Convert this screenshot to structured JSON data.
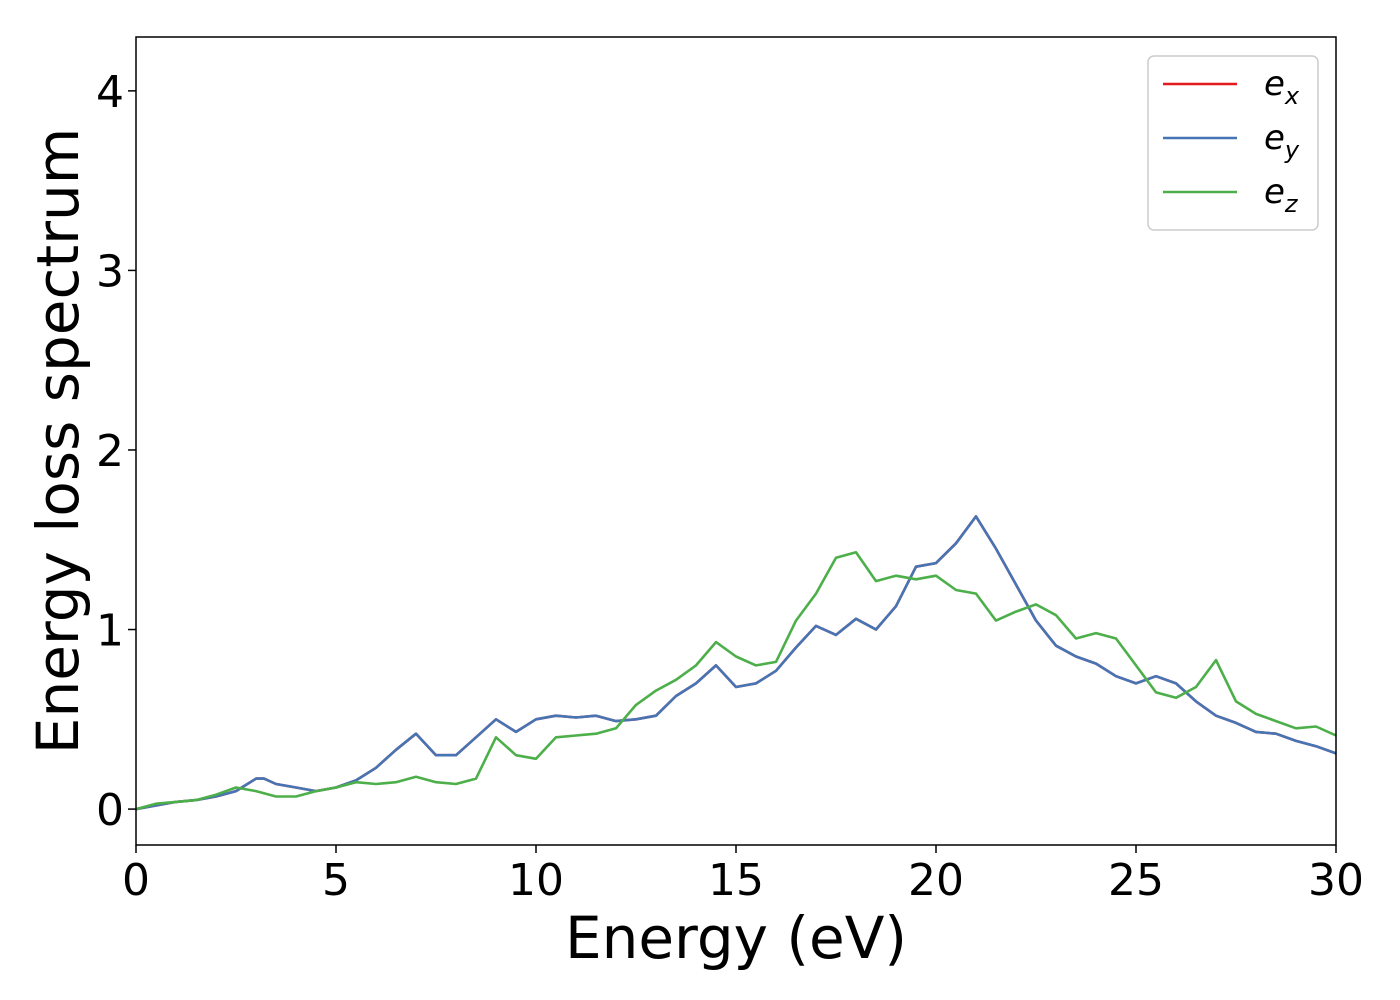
{
  "chart_data": {
    "type": "line",
    "title": "",
    "xlabel": "Energy (eV)",
    "ylabel": "Energy loss spectrum",
    "xlim": [
      0,
      30
    ],
    "ylim": [
      -0.2,
      4.3
    ],
    "xticks": [
      0,
      5,
      10,
      15,
      20,
      25,
      30
    ],
    "yticks": [
      0,
      1,
      2,
      3,
      4
    ],
    "grid": false,
    "legend_position": "top-right",
    "series": [
      {
        "name": "e",
        "subscript": "x",
        "color": "#e41a1c",
        "x": [
          0,
          0.5,
          1,
          1.5,
          2,
          2.5,
          3,
          3.2,
          3.5,
          4,
          4.5,
          5,
          5.5,
          6,
          6.5,
          7,
          7.5,
          8,
          8.5,
          9,
          9.5,
          10,
          10.5,
          11,
          11.5,
          12,
          12.5,
          13,
          13.5,
          14,
          14.5,
          15,
          15.5,
          16,
          16.5,
          17,
          17.5,
          18,
          18.5,
          19,
          19.5,
          20,
          20.5,
          21,
          21.5,
          22,
          22.5,
          23,
          23.5,
          24,
          24.5,
          25,
          25.5,
          26,
          26.5,
          27,
          27.5,
          28,
          28.5,
          29,
          29.5,
          30
        ],
        "y": [
          0,
          0.02,
          0.04,
          0.05,
          0.07,
          0.1,
          0.17,
          0.17,
          0.14,
          0.12,
          0.1,
          0.12,
          0.16,
          0.23,
          0.33,
          0.42,
          0.3,
          0.3,
          0.4,
          0.5,
          0.43,
          0.5,
          0.52,
          0.51,
          0.52,
          0.49,
          0.5,
          0.52,
          0.63,
          0.7,
          0.8,
          0.68,
          0.7,
          0.77,
          0.9,
          1.02,
          0.97,
          1.06,
          1.0,
          1.13,
          1.35,
          1.37,
          1.48,
          1.63,
          1.45,
          1.25,
          1.05,
          0.91,
          0.85,
          0.81,
          0.74,
          0.7,
          0.74,
          0.7,
          0.6,
          0.52,
          0.48,
          0.43,
          0.42,
          0.38,
          0.35,
          0.31
        ]
      },
      {
        "name": "e",
        "subscript": "y",
        "color": "#4575b4",
        "x": [
          0,
          0.5,
          1,
          1.5,
          2,
          2.5,
          3,
          3.2,
          3.5,
          4,
          4.5,
          5,
          5.5,
          6,
          6.5,
          7,
          7.5,
          8,
          8.5,
          9,
          9.5,
          10,
          10.5,
          11,
          11.5,
          12,
          12.5,
          13,
          13.5,
          14,
          14.5,
          15,
          15.5,
          16,
          16.5,
          17,
          17.5,
          18,
          18.5,
          19,
          19.5,
          20,
          20.5,
          21,
          21.5,
          22,
          22.5,
          23,
          23.5,
          24,
          24.5,
          25,
          25.5,
          26,
          26.5,
          27,
          27.5,
          28,
          28.5,
          29,
          29.5,
          30
        ],
        "y": [
          0,
          0.02,
          0.04,
          0.05,
          0.07,
          0.1,
          0.17,
          0.17,
          0.14,
          0.12,
          0.1,
          0.12,
          0.16,
          0.23,
          0.33,
          0.42,
          0.3,
          0.3,
          0.4,
          0.5,
          0.43,
          0.5,
          0.52,
          0.51,
          0.52,
          0.49,
          0.5,
          0.52,
          0.63,
          0.7,
          0.8,
          0.68,
          0.7,
          0.77,
          0.9,
          1.02,
          0.97,
          1.06,
          1.0,
          1.13,
          1.35,
          1.37,
          1.48,
          1.63,
          1.45,
          1.25,
          1.05,
          0.91,
          0.85,
          0.81,
          0.74,
          0.7,
          0.74,
          0.7,
          0.6,
          0.52,
          0.48,
          0.43,
          0.42,
          0.38,
          0.35,
          0.31
        ]
      },
      {
        "name": "e",
        "subscript": "z",
        "color": "#4daf4a",
        "x": [
          0,
          0.5,
          1,
          1.5,
          2,
          2.5,
          3,
          3.5,
          4,
          4.5,
          5,
          5.5,
          6,
          6.5,
          7,
          7.5,
          8,
          8.5,
          9,
          9.5,
          10,
          10.5,
          11,
          11.5,
          12,
          12.5,
          13,
          13.5,
          14,
          14.5,
          15,
          15.5,
          16,
          16.5,
          17,
          17.5,
          18,
          18.5,
          19,
          19.5,
          20,
          20.5,
          21,
          21.5,
          22,
          22.5,
          23,
          23.5,
          24,
          24.5,
          25,
          25.5,
          26,
          26.5,
          27,
          27.5,
          28,
          28.5,
          29,
          29.5,
          30
        ],
        "y": [
          0,
          0.03,
          0.04,
          0.05,
          0.08,
          0.12,
          0.1,
          0.07,
          0.07,
          0.1,
          0.12,
          0.15,
          0.14,
          0.15,
          0.18,
          0.15,
          0.14,
          0.17,
          0.4,
          0.3,
          0.28,
          0.4,
          0.41,
          0.42,
          0.45,
          0.58,
          0.66,
          0.72,
          0.8,
          0.93,
          0.85,
          0.8,
          0.82,
          1.05,
          1.2,
          1.4,
          1.43,
          1.27,
          1.3,
          1.28,
          1.3,
          1.22,
          1.2,
          1.05,
          1.1,
          1.14,
          1.08,
          0.95,
          0.98,
          0.95,
          0.8,
          0.65,
          0.62,
          0.68,
          0.83,
          0.6,
          0.53,
          0.49,
          0.45,
          0.46,
          0.41
        ]
      }
    ]
  }
}
